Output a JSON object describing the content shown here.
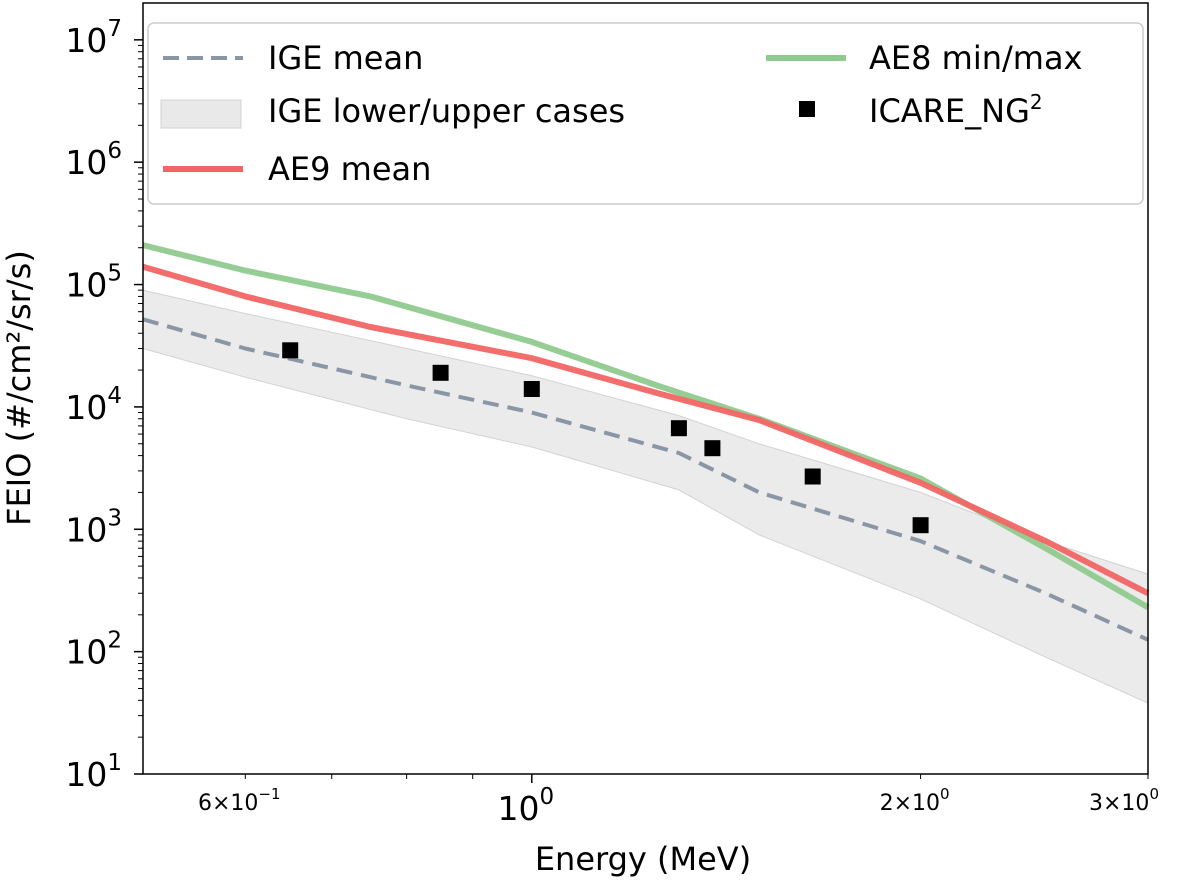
{
  "chart_data": {
    "type": "line",
    "title": "",
    "xlabel": "Energy (MeV)",
    "ylabel": "FEIO (#/cm²/sr/s)",
    "xscale": "log",
    "yscale": "log",
    "xlim": [
      0.5,
      3.0
    ],
    "ylim": [
      10,
      20000000
    ],
    "y_ticks": [
      {
        "value": 10,
        "base": "10",
        "exp": "1"
      },
      {
        "value": 100,
        "base": "10",
        "exp": "2"
      },
      {
        "value": 1000,
        "base": "10",
        "exp": "3"
      },
      {
        "value": 10000,
        "base": "10",
        "exp": "4"
      },
      {
        "value": 100000,
        "base": "10",
        "exp": "5"
      },
      {
        "value": 1000000,
        "base": "10",
        "exp": "6"
      },
      {
        "value": 10000000,
        "base": "10",
        "exp": "7"
      }
    ],
    "x_ticks_major": [
      {
        "value": 1.0,
        "base": "10",
        "exp": "0"
      }
    ],
    "x_ticks_minor": [
      {
        "value": 0.6,
        "mantissa": "6×10",
        "exp": "−1"
      },
      {
        "value": 2.0,
        "mantissa": "2×10",
        "exp": "0"
      },
      {
        "value": 3.0,
        "mantissa": "3×10",
        "exp": "0"
      }
    ],
    "band": {
      "name": "IGE lower/upper cases",
      "color": "#d3d3d3",
      "x": [
        0.5,
        0.6,
        0.8,
        1.0,
        1.3,
        1.5,
        2.0,
        2.5,
        3.0
      ],
      "upper": [
        90000,
        58000,
        30000,
        18000,
        8500,
        5000,
        2000,
        800,
        430
      ],
      "lower": [
        30000,
        17500,
        8000,
        4700,
        2100,
        900,
        270,
        90,
        38
      ]
    },
    "series": [
      {
        "name": "AE8 min/max",
        "color": "#8fca8f",
        "style": "solid",
        "x": [
          0.5,
          0.6,
          0.75,
          1.0,
          1.25,
          1.5,
          2.0,
          2.5,
          3.0
        ],
        "y": [
          210000,
          130000,
          80000,
          34000,
          15000,
          8000,
          2600,
          700,
          230
        ]
      },
      {
        "name": "AE9 mean",
        "color": "#f26565",
        "style": "solid",
        "x": [
          0.5,
          0.6,
          0.75,
          1.0,
          1.25,
          1.5,
          2.0,
          2.5,
          3.0
        ],
        "y": [
          140000,
          80000,
          45000,
          25000,
          13000,
          7800,
          2400,
          800,
          300
        ]
      },
      {
        "name": "IGE mean",
        "color": "#8a95a5",
        "style": "dashed",
        "x": [
          0.5,
          0.6,
          0.8,
          1.0,
          1.3,
          1.5,
          2.0,
          2.5,
          3.0
        ],
        "y": [
          52000,
          30000,
          15000,
          9000,
          4200,
          2000,
          800,
          300,
          125
        ]
      },
      {
        "name": "ICARE_NG²",
        "color": "#000000",
        "style": "markers",
        "x": [
          0.65,
          0.85,
          1.0,
          1.3,
          1.38,
          1.65,
          2.0
        ],
        "y": [
          29000,
          19000,
          14000,
          6700,
          4600,
          2700,
          1080
        ]
      }
    ],
    "legend": {
      "position": "top",
      "items": [
        {
          "label": "IGE mean",
          "kind": "dashed",
          "color": "#8a95a5"
        },
        {
          "label": "IGE lower/upper cases",
          "kind": "patch",
          "color": "#d3d3d3"
        },
        {
          "label": "AE9 mean",
          "kind": "line",
          "color": "#f26565"
        },
        {
          "label": "AE8 min/max",
          "kind": "line",
          "color": "#8fca8f"
        },
        {
          "label": "ICARE_NG",
          "label_sup": "2",
          "kind": "marker",
          "color": "#000000"
        }
      ]
    }
  }
}
